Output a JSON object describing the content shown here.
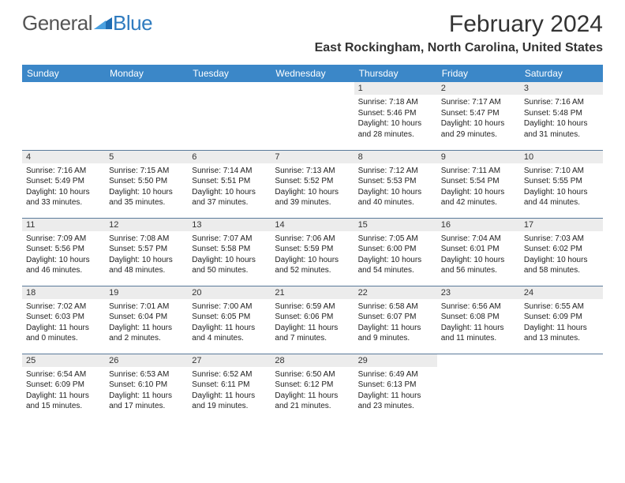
{
  "logo": {
    "part1": "General",
    "part2": "Blue"
  },
  "title": "February 2024",
  "location": "East Rockingham, North Carolina, United States",
  "colors": {
    "header_bg": "#3b87c8",
    "header_text": "#ffffff",
    "daynum_bg": "#ececec",
    "row_border": "#5a7a9a",
    "text": "#222222",
    "logo_gray": "#555555",
    "logo_blue": "#2f7bbf"
  },
  "day_headers": [
    "Sunday",
    "Monday",
    "Tuesday",
    "Wednesday",
    "Thursday",
    "Friday",
    "Saturday"
  ],
  "weeks": [
    [
      null,
      null,
      null,
      null,
      {
        "n": "1",
        "sunrise": "7:18 AM",
        "sunset": "5:46 PM",
        "daylight": "10 hours and 28 minutes."
      },
      {
        "n": "2",
        "sunrise": "7:17 AM",
        "sunset": "5:47 PM",
        "daylight": "10 hours and 29 minutes."
      },
      {
        "n": "3",
        "sunrise": "7:16 AM",
        "sunset": "5:48 PM",
        "daylight": "10 hours and 31 minutes."
      }
    ],
    [
      {
        "n": "4",
        "sunrise": "7:16 AM",
        "sunset": "5:49 PM",
        "daylight": "10 hours and 33 minutes."
      },
      {
        "n": "5",
        "sunrise": "7:15 AM",
        "sunset": "5:50 PM",
        "daylight": "10 hours and 35 minutes."
      },
      {
        "n": "6",
        "sunrise": "7:14 AM",
        "sunset": "5:51 PM",
        "daylight": "10 hours and 37 minutes."
      },
      {
        "n": "7",
        "sunrise": "7:13 AM",
        "sunset": "5:52 PM",
        "daylight": "10 hours and 39 minutes."
      },
      {
        "n": "8",
        "sunrise": "7:12 AM",
        "sunset": "5:53 PM",
        "daylight": "10 hours and 40 minutes."
      },
      {
        "n": "9",
        "sunrise": "7:11 AM",
        "sunset": "5:54 PM",
        "daylight": "10 hours and 42 minutes."
      },
      {
        "n": "10",
        "sunrise": "7:10 AM",
        "sunset": "5:55 PM",
        "daylight": "10 hours and 44 minutes."
      }
    ],
    [
      {
        "n": "11",
        "sunrise": "7:09 AM",
        "sunset": "5:56 PM",
        "daylight": "10 hours and 46 minutes."
      },
      {
        "n": "12",
        "sunrise": "7:08 AM",
        "sunset": "5:57 PM",
        "daylight": "10 hours and 48 minutes."
      },
      {
        "n": "13",
        "sunrise": "7:07 AM",
        "sunset": "5:58 PM",
        "daylight": "10 hours and 50 minutes."
      },
      {
        "n": "14",
        "sunrise": "7:06 AM",
        "sunset": "5:59 PM",
        "daylight": "10 hours and 52 minutes."
      },
      {
        "n": "15",
        "sunrise": "7:05 AM",
        "sunset": "6:00 PM",
        "daylight": "10 hours and 54 minutes."
      },
      {
        "n": "16",
        "sunrise": "7:04 AM",
        "sunset": "6:01 PM",
        "daylight": "10 hours and 56 minutes."
      },
      {
        "n": "17",
        "sunrise": "7:03 AM",
        "sunset": "6:02 PM",
        "daylight": "10 hours and 58 minutes."
      }
    ],
    [
      {
        "n": "18",
        "sunrise": "7:02 AM",
        "sunset": "6:03 PM",
        "daylight": "11 hours and 0 minutes."
      },
      {
        "n": "19",
        "sunrise": "7:01 AM",
        "sunset": "6:04 PM",
        "daylight": "11 hours and 2 minutes."
      },
      {
        "n": "20",
        "sunrise": "7:00 AM",
        "sunset": "6:05 PM",
        "daylight": "11 hours and 4 minutes."
      },
      {
        "n": "21",
        "sunrise": "6:59 AM",
        "sunset": "6:06 PM",
        "daylight": "11 hours and 7 minutes."
      },
      {
        "n": "22",
        "sunrise": "6:58 AM",
        "sunset": "6:07 PM",
        "daylight": "11 hours and 9 minutes."
      },
      {
        "n": "23",
        "sunrise": "6:56 AM",
        "sunset": "6:08 PM",
        "daylight": "11 hours and 11 minutes."
      },
      {
        "n": "24",
        "sunrise": "6:55 AM",
        "sunset": "6:09 PM",
        "daylight": "11 hours and 13 minutes."
      }
    ],
    [
      {
        "n": "25",
        "sunrise": "6:54 AM",
        "sunset": "6:09 PM",
        "daylight": "11 hours and 15 minutes."
      },
      {
        "n": "26",
        "sunrise": "6:53 AM",
        "sunset": "6:10 PM",
        "daylight": "11 hours and 17 minutes."
      },
      {
        "n": "27",
        "sunrise": "6:52 AM",
        "sunset": "6:11 PM",
        "daylight": "11 hours and 19 minutes."
      },
      {
        "n": "28",
        "sunrise": "6:50 AM",
        "sunset": "6:12 PM",
        "daylight": "11 hours and 21 minutes."
      },
      {
        "n": "29",
        "sunrise": "6:49 AM",
        "sunset": "6:13 PM",
        "daylight": "11 hours and 23 minutes."
      },
      null,
      null
    ]
  ],
  "labels": {
    "sunrise": "Sunrise: ",
    "sunset": "Sunset: ",
    "daylight": "Daylight: "
  }
}
